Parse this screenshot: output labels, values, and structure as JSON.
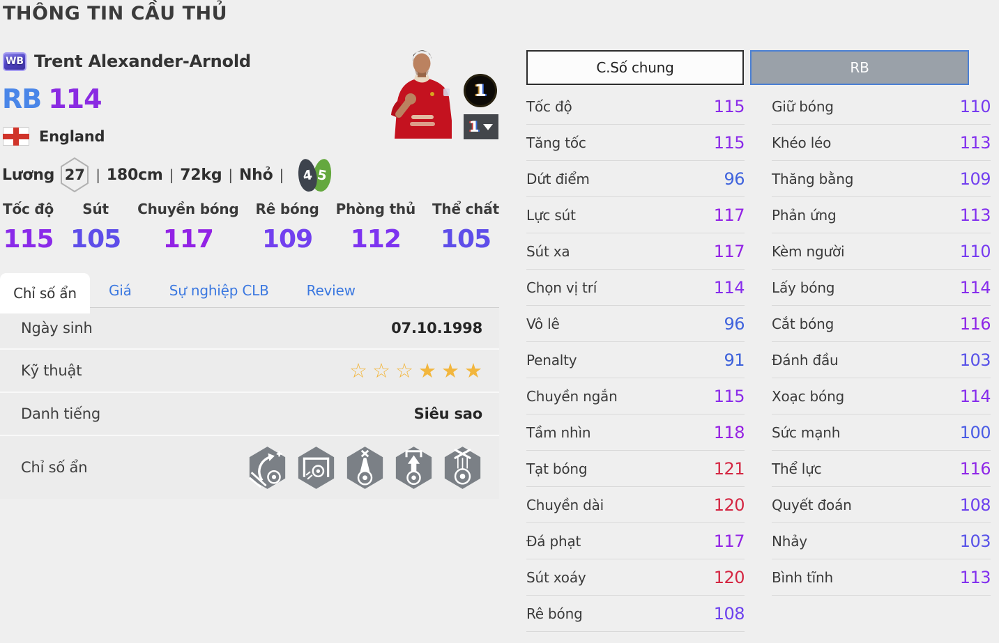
{
  "page": {
    "title": "THÔNG TIN CẦU THỦ"
  },
  "player": {
    "card_badge": "WB",
    "name": "Trent Alexander-Arnold",
    "position": "RB",
    "position_color": "#4a86e8",
    "rating": "114",
    "rating_color": "#8a2be2",
    "nation": "England",
    "salary_label": "Lương",
    "salary": "27",
    "separator": "|",
    "height": "180cm",
    "weight": "72kg",
    "body_type": "Nhỏ",
    "weak_foot": "4",
    "skill_foot": "5"
  },
  "photo_badges": {
    "level_circle": "1",
    "level_dropdown": "1"
  },
  "summary_stats": [
    {
      "label": "Tốc độ",
      "value": "115",
      "color": "#8a2ae9"
    },
    {
      "label": "Sút",
      "value": "105",
      "color": "#5e4de9"
    },
    {
      "label": "Chuyền bóng",
      "value": "117",
      "color": "#9222e5"
    },
    {
      "label": "Rê bóng",
      "value": "109",
      "color": "#7240ef"
    },
    {
      "label": "Phòng thủ",
      "value": "112",
      "color": "#7d33f0"
    },
    {
      "label": "Thể chất",
      "value": "105",
      "color": "#5e4de9"
    }
  ],
  "tabs": [
    {
      "label": "Chỉ số ẩn",
      "name": "tab-hidden-stats",
      "active": true
    },
    {
      "label": "Giá",
      "name": "tab-price",
      "active": false
    },
    {
      "label": "Sự nghiệp CLB",
      "name": "tab-club-career",
      "active": false
    },
    {
      "label": "Review",
      "name": "tab-review",
      "active": false
    }
  ],
  "info_table": {
    "birth": {
      "label": "Ngày sinh",
      "value": "07.10.1998"
    },
    "skill": {
      "label": "Kỹ thuật",
      "star_glyphs": {
        "hollow": "☆",
        "filled": "★"
      },
      "stars": [
        "hollow",
        "hollow",
        "hollow",
        "filled",
        "filled",
        "filled"
      ]
    },
    "fame": {
      "label": "Danh tiếng",
      "value": "Siêu sao"
    },
    "hidden": {
      "label": "Chỉ số ẩn",
      "icons": [
        "pitch-run-arrow-icon",
        "goal-shot-icon",
        "vertical-beam-icon",
        "through-run-icon",
        "puppet-strings-icon"
      ]
    }
  },
  "stat_panel": {
    "columns": [
      {
        "header": "C.Số chung",
        "active": false,
        "stats": [
          {
            "label": "Tốc độ",
            "value": "115",
            "color": "#8a2ae9"
          },
          {
            "label": "Tăng tốc",
            "value": "115",
            "color": "#8a2ae9"
          },
          {
            "label": "Dứt điểm",
            "value": "96",
            "color": "#3f63dd"
          },
          {
            "label": "Lực sút",
            "value": "117",
            "color": "#9222e5"
          },
          {
            "label": "Sút xa",
            "value": "117",
            "color": "#9222e5"
          },
          {
            "label": "Chọn vị trí",
            "value": "114",
            "color": "#862cec"
          },
          {
            "label": "Vô lê",
            "value": "96",
            "color": "#3f63dd"
          },
          {
            "label": "Penalty",
            "value": "91",
            "color": "#3b60db"
          },
          {
            "label": "Chuyền ngắn",
            "value": "115",
            "color": "#8a2ae9"
          },
          {
            "label": "Tầm nhìn",
            "value": "118",
            "color": "#951fe3"
          },
          {
            "label": "Tạt bóng",
            "value": "121",
            "color": "#d42642"
          },
          {
            "label": "Chuyền dài",
            "value": "120",
            "color": "#d42642"
          },
          {
            "label": "Đá phạt",
            "value": "117",
            "color": "#9222e5"
          },
          {
            "label": "Sút xoáy",
            "value": "120",
            "color": "#d42642"
          },
          {
            "label": "Rê bóng",
            "value": "108",
            "color": "#6c41ee"
          }
        ]
      },
      {
        "header": "RB",
        "active": true,
        "stats": [
          {
            "label": "Giữ bóng",
            "value": "110",
            "color": "#763af0"
          },
          {
            "label": "Khéo léo",
            "value": "113",
            "color": "#8230ee"
          },
          {
            "label": "Thăng bằng",
            "value": "109",
            "color": "#7240ef"
          },
          {
            "label": "Phản ứng",
            "value": "113",
            "color": "#8230ee"
          },
          {
            "label": "Kèm người",
            "value": "110",
            "color": "#763af0"
          },
          {
            "label": "Lấy bóng",
            "value": "114",
            "color": "#862cec"
          },
          {
            "label": "Cắt bóng",
            "value": "116",
            "color": "#8e26e7"
          },
          {
            "label": "Đánh đầu",
            "value": "103",
            "color": "#5852e8"
          },
          {
            "label": "Xoạc bóng",
            "value": "114",
            "color": "#862cec"
          },
          {
            "label": "Sức mạnh",
            "value": "100",
            "color": "#4a5ce4"
          },
          {
            "label": "Thể lực",
            "value": "116",
            "color": "#8e26e7"
          },
          {
            "label": "Quyết đoán",
            "value": "108",
            "color": "#6c41ee"
          },
          {
            "label": "Nhảy",
            "value": "103",
            "color": "#5852e8"
          },
          {
            "label": "Bình tĩnh",
            "value": "113",
            "color": "#8230ee"
          }
        ]
      }
    ]
  }
}
